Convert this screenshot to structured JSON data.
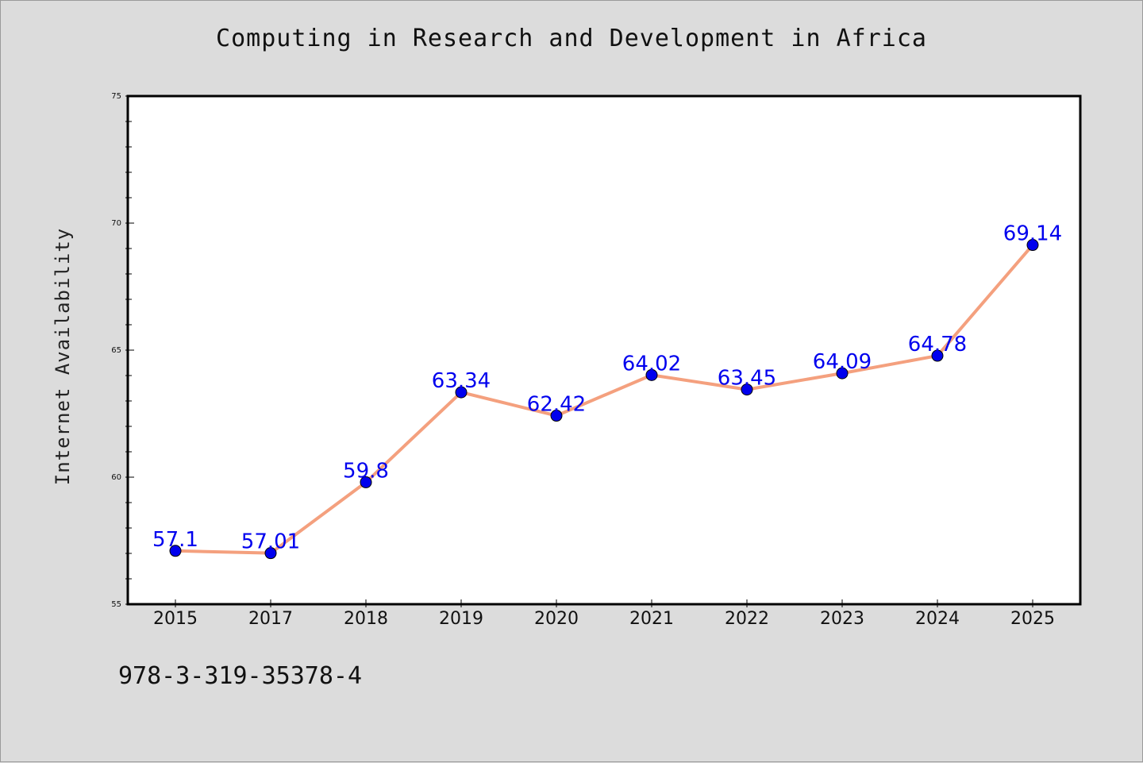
{
  "chart_data": {
    "type": "line",
    "title": "Computing in Research and Development in Africa",
    "xlabel": "",
    "ylabel": "Internet Availability",
    "categories": [
      "2015",
      "2017",
      "2018",
      "2019",
      "2020",
      "2021",
      "2022",
      "2023",
      "2024",
      "2025"
    ],
    "series": [
      {
        "values": [
          57.1,
          57.01,
          59.8,
          63.34,
          62.42,
          64.02,
          63.45,
          64.09,
          64.78,
          69.14
        ],
        "labels": [
          "57.1",
          "57.01",
          "59.8",
          "63.34",
          "62.42",
          "64.02",
          "63.45",
          "64.09",
          "64.78",
          "69.14"
        ],
        "line_color": "#f4a07e",
        "marker_color": "#0000ee"
      }
    ],
    "ylim": [
      55,
      75
    ],
    "yticks": [
      "55",
      "60",
      "65",
      "70",
      "75"
    ],
    "grid": false,
    "legend": "none"
  },
  "footer": {
    "code": "978-3-319-35378-4"
  },
  "colors": {
    "background": "#dcdcdc",
    "plot_background": "#ffffff",
    "label_color": "#0000ee"
  }
}
